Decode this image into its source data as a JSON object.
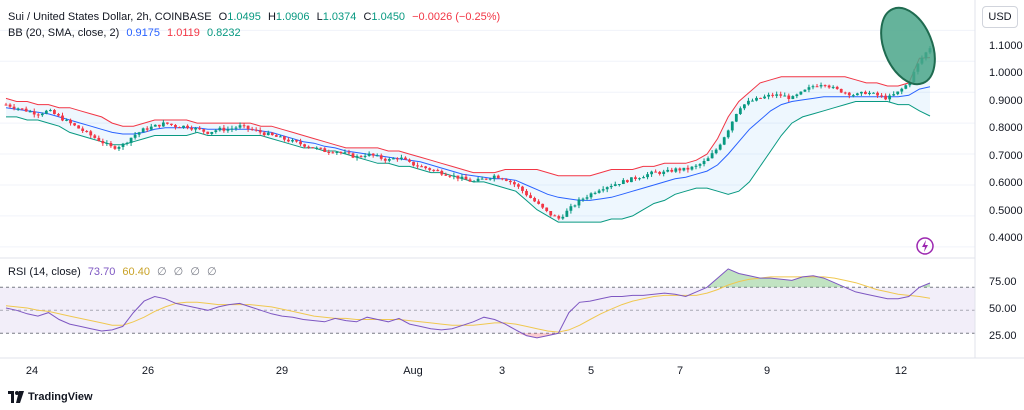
{
  "header": {
    "symbol": "Sui / United States Dollar, 2h, COINBASE",
    "o_label": "O",
    "o_value": "1.0495",
    "h_label": "H",
    "h_value": "1.0906",
    "l_label": "L",
    "l_value": "1.0374",
    "c_label": "C",
    "c_value": "1.0450",
    "change": "−0.0026 (−0.25%)"
  },
  "bb_legend": {
    "name": "BB (20, SMA, close, 2)",
    "basis": "0.9175",
    "upper": "1.0119",
    "lower": "0.8232"
  },
  "rsi_legend": {
    "name": "RSI (14, close)",
    "rsi": "73.70",
    "ma": "60.40",
    "empty": [
      "∅",
      "∅",
      "∅",
      "∅"
    ]
  },
  "currency": "USD",
  "price_axis": [
    "1.1000",
    "1.0000",
    "0.9000",
    "0.8000",
    "0.7000",
    "0.6000",
    "0.5000",
    "0.4000"
  ],
  "rsi_axis": [
    "75.00",
    "50.00",
    "25.00"
  ],
  "time_axis": [
    "24",
    "26",
    "29",
    "Aug",
    "3",
    "5",
    "7",
    "9",
    "12"
  ],
  "footer": {
    "brand": "TradingView"
  },
  "colors": {
    "up": "#089981",
    "down": "#f23645",
    "basis": "#2962ff",
    "rsi": "#7e57c2",
    "rsi_ma": "#f0c850",
    "highlight": "#4aa68a"
  },
  "chart_data": {
    "type": "candlestick",
    "symbol": "Sui / United States Dollar",
    "interval": "2h",
    "exchange": "COINBASE",
    "x_ticks": [
      "24",
      "26",
      "29",
      "Aug",
      "3",
      "5",
      "7",
      "9",
      "12"
    ],
    "price_range": [
      0.38,
      1.14
    ],
    "close_path": [
      0.86,
      0.85,
      0.84,
      0.83,
      0.84,
      0.82,
      0.8,
      0.78,
      0.76,
      0.74,
      0.72,
      0.73,
      0.76,
      0.78,
      0.79,
      0.8,
      0.79,
      0.79,
      0.78,
      0.77,
      0.78,
      0.78,
      0.79,
      0.78,
      0.77,
      0.76,
      0.75,
      0.74,
      0.73,
      0.72,
      0.71,
      0.71,
      0.7,
      0.69,
      0.7,
      0.69,
      0.68,
      0.69,
      0.67,
      0.66,
      0.65,
      0.64,
      0.63,
      0.62,
      0.61,
      0.62,
      0.63,
      0.62,
      0.6,
      0.57,
      0.54,
      0.51,
      0.49,
      0.52,
      0.55,
      0.57,
      0.59,
      0.6,
      0.61,
      0.62,
      0.63,
      0.64,
      0.64,
      0.65,
      0.65,
      0.66,
      0.68,
      0.72,
      0.78,
      0.85,
      0.87,
      0.88,
      0.89,
      0.89,
      0.88,
      0.9,
      0.92,
      0.93,
      0.91,
      0.9,
      0.89,
      0.9,
      0.89,
      0.88,
      0.9,
      0.93,
      1.0,
      1.045
    ],
    "bb_upper_path": [
      0.88,
      0.87,
      0.87,
      0.86,
      0.86,
      0.85,
      0.85,
      0.84,
      0.83,
      0.82,
      0.8,
      0.79,
      0.79,
      0.8,
      0.81,
      0.81,
      0.81,
      0.81,
      0.8,
      0.8,
      0.8,
      0.8,
      0.8,
      0.8,
      0.79,
      0.79,
      0.78,
      0.77,
      0.76,
      0.75,
      0.74,
      0.73,
      0.72,
      0.72,
      0.72,
      0.72,
      0.71,
      0.71,
      0.7,
      0.69,
      0.68,
      0.67,
      0.66,
      0.65,
      0.64,
      0.64,
      0.64,
      0.65,
      0.65,
      0.65,
      0.65,
      0.64,
      0.63,
      0.63,
      0.63,
      0.63,
      0.64,
      0.65,
      0.65,
      0.65,
      0.66,
      0.66,
      0.67,
      0.67,
      0.67,
      0.68,
      0.7,
      0.75,
      0.82,
      0.87,
      0.9,
      0.93,
      0.94,
      0.95,
      0.95,
      0.95,
      0.95,
      0.95,
      0.95,
      0.95,
      0.94,
      0.93,
      0.93,
      0.92,
      0.92,
      0.93,
      1.01,
      1.012
    ],
    "bb_basis_path": [
      0.85,
      0.845,
      0.84,
      0.835,
      0.83,
      0.82,
      0.81,
      0.8,
      0.79,
      0.78,
      0.77,
      0.765,
      0.765,
      0.77,
      0.78,
      0.785,
      0.785,
      0.785,
      0.785,
      0.78,
      0.78,
      0.78,
      0.78,
      0.78,
      0.775,
      0.77,
      0.76,
      0.75,
      0.74,
      0.735,
      0.725,
      0.72,
      0.71,
      0.705,
      0.7,
      0.695,
      0.69,
      0.685,
      0.68,
      0.675,
      0.665,
      0.655,
      0.645,
      0.635,
      0.63,
      0.625,
      0.62,
      0.62,
      0.615,
      0.6,
      0.585,
      0.57,
      0.56,
      0.555,
      0.55,
      0.55,
      0.555,
      0.56,
      0.57,
      0.58,
      0.59,
      0.6,
      0.61,
      0.62,
      0.625,
      0.635,
      0.645,
      0.665,
      0.7,
      0.74,
      0.78,
      0.81,
      0.84,
      0.86,
      0.87,
      0.875,
      0.88,
      0.885,
      0.885,
      0.885,
      0.885,
      0.885,
      0.885,
      0.885,
      0.885,
      0.89,
      0.91,
      0.9175
    ],
    "bb_lower_path": [
      0.82,
      0.82,
      0.81,
      0.81,
      0.8,
      0.79,
      0.77,
      0.76,
      0.75,
      0.74,
      0.73,
      0.73,
      0.74,
      0.75,
      0.76,
      0.76,
      0.76,
      0.76,
      0.77,
      0.76,
      0.76,
      0.76,
      0.76,
      0.76,
      0.76,
      0.75,
      0.74,
      0.73,
      0.72,
      0.72,
      0.71,
      0.71,
      0.7,
      0.69,
      0.68,
      0.67,
      0.67,
      0.66,
      0.66,
      0.65,
      0.64,
      0.64,
      0.63,
      0.62,
      0.61,
      0.61,
      0.6,
      0.59,
      0.58,
      0.55,
      0.52,
      0.5,
      0.48,
      0.48,
      0.48,
      0.48,
      0.48,
      0.49,
      0.49,
      0.5,
      0.52,
      0.54,
      0.55,
      0.57,
      0.58,
      0.59,
      0.59,
      0.58,
      0.57,
      0.58,
      0.61,
      0.66,
      0.71,
      0.76,
      0.8,
      0.82,
      0.83,
      0.84,
      0.85,
      0.86,
      0.87,
      0.87,
      0.87,
      0.87,
      0.86,
      0.86,
      0.84,
      0.8232
    ],
    "rsi_path": [
      52,
      50,
      47,
      45,
      48,
      42,
      38,
      36,
      34,
      32,
      33,
      36,
      48,
      58,
      62,
      60,
      56,
      54,
      52,
      50,
      53,
      55,
      56,
      53,
      50,
      47,
      45,
      44,
      42,
      41,
      40,
      43,
      41,
      40,
      44,
      42,
      40,
      43,
      38,
      36,
      34,
      33,
      34,
      37,
      40,
      44,
      42,
      38,
      33,
      28,
      26,
      28,
      30,
      48,
      57,
      58,
      60,
      62,
      62,
      63,
      63,
      64,
      65,
      64,
      62,
      66,
      70,
      78,
      86,
      82,
      80,
      78,
      78,
      77,
      76,
      79,
      80,
      78,
      74,
      70,
      66,
      64,
      62,
      60,
      60,
      62,
      70,
      73.7
    ],
    "rsi_ma_path": [
      54,
      53,
      52,
      50,
      49,
      47,
      45,
      43,
      41,
      39,
      37,
      37,
      40,
      44,
      49,
      53,
      56,
      57,
      57,
      56,
      55,
      55,
      55,
      55,
      54,
      53,
      51,
      49,
      47,
      45,
      44,
      43,
      43,
      42,
      42,
      42,
      42,
      42,
      41,
      40,
      39,
      38,
      37,
      37,
      37,
      38,
      39,
      39,
      38,
      36,
      34,
      32,
      31,
      33,
      37,
      42,
      47,
      51,
      55,
      58,
      60,
      62,
      63,
      63,
      63,
      63,
      65,
      68,
      72,
      75,
      77,
      78,
      79,
      79,
      79,
      79,
      79,
      79,
      78,
      76,
      74,
      71,
      68,
      66,
      64,
      63,
      62,
      60.4
    ],
    "rsi_range": [
      12,
      92
    ],
    "rsi_levels": [
      70,
      50,
      30
    ]
  }
}
